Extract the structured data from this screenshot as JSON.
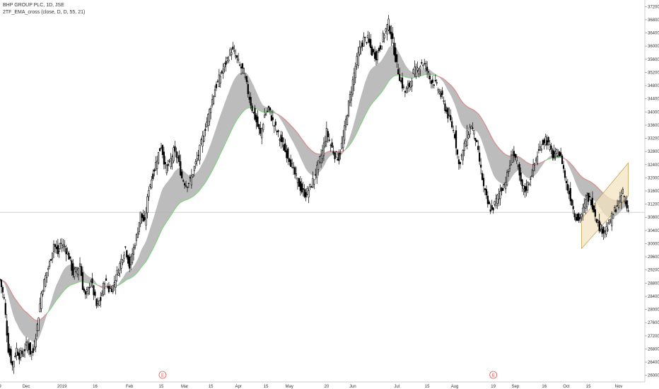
{
  "header": {
    "symbol_line": "BHP GROUP PLC, 1D, JSE",
    "indicator_line": "2TF_EMA_cross (close, D, D, 55, 21)"
  },
  "colors": {
    "up": "#000000",
    "down": "#000000",
    "cloud_fill": "#b0b0b0",
    "ema_fast_above": "#7fd37f",
    "ema_fast_below": "#d98a8a",
    "channel_fill": "#f3e4c0",
    "channel_edge": "#c9a35a",
    "earnings": "#e05a5a"
  },
  "chart_data": {
    "type": "candlestick",
    "yaxis": {
      "position": "right",
      "range": [
        25800,
        37400
      ],
      "ticks": [
        26000,
        26400,
        26800,
        27200,
        27600,
        28000,
        28400,
        28800,
        29200,
        29600,
        30000,
        30400,
        30800,
        31200,
        31600,
        32000,
        32400,
        32800,
        33200,
        33600,
        34000,
        34400,
        34800,
        35200,
        35600,
        36000,
        36400,
        36800,
        37200
      ]
    },
    "xaxis": {
      "labels": [
        "9",
        "Dec",
        "2019",
        "16",
        "Feb",
        "15",
        "Mar",
        "15",
        "Apr",
        "15",
        "May",
        "20",
        "Jun",
        "Jul",
        "15",
        "Aug",
        "19",
        "Sep",
        "16",
        "Oct",
        "15",
        "Nov"
      ],
      "label_days": [
        0,
        19,
        45,
        69,
        94,
        117,
        134,
        153,
        173,
        193,
        210,
        237,
        256,
        288,
        310,
        330,
        358,
        374,
        395,
        411,
        427,
        449
      ]
    },
    "horizontal_line": 30950,
    "earnings_markers": [
      {
        "label": "E",
        "day": 118
      },
      {
        "label": "E",
        "day": 358
      }
    ],
    "channel": {
      "start_day": 422,
      "end_day": 456,
      "lower_start": 29850,
      "lower_end": 31450,
      "upper_start": 30750,
      "upper_end": 32450
    },
    "keypoints": [
      [
        0,
        28900
      ],
      [
        3,
        28300
      ],
      [
        6,
        26800
      ],
      [
        9,
        26300
      ],
      [
        12,
        26800
      ],
      [
        14,
        26600
      ],
      [
        17,
        26700
      ],
      [
        20,
        27000
      ],
      [
        22,
        26700
      ],
      [
        24,
        26700
      ],
      [
        27,
        27500
      ],
      [
        30,
        28500
      ],
      [
        33,
        29000
      ],
      [
        36,
        29400
      ],
      [
        39,
        30000
      ],
      [
        42,
        29700
      ],
      [
        44,
        30000
      ],
      [
        47,
        29900
      ],
      [
        50,
        29600
      ],
      [
        53,
        29100
      ],
      [
        56,
        29200
      ],
      [
        58,
        29400
      ],
      [
        60,
        28700
      ],
      [
        62,
        28400
      ],
      [
        64,
        28600
      ],
      [
        66,
        28900
      ],
      [
        68,
        28500
      ],
      [
        70,
        28100
      ],
      [
        73,
        28300
      ],
      [
        76,
        28900
      ],
      [
        79,
        28600
      ],
      [
        82,
        28700
      ],
      [
        85,
        29100
      ],
      [
        88,
        29500
      ],
      [
        91,
        29900
      ],
      [
        94,
        29300
      ],
      [
        96,
        29700
      ],
      [
        99,
        30200
      ],
      [
        102,
        30900
      ],
      [
        105,
        30600
      ],
      [
        108,
        31700
      ],
      [
        111,
        32100
      ],
      [
        114,
        32600
      ],
      [
        117,
        33000
      ],
      [
        120,
        32300
      ],
      [
        123,
        32400
      ],
      [
        126,
        32800
      ],
      [
        129,
        32600
      ],
      [
        132,
        32000
      ],
      [
        135,
        31800
      ],
      [
        138,
        31900
      ],
      [
        141,
        32300
      ],
      [
        144,
        32700
      ],
      [
        147,
        33200
      ],
      [
        150,
        33700
      ],
      [
        153,
        34200
      ],
      [
        156,
        34700
      ],
      [
        159,
        35000
      ],
      [
        162,
        35300
      ],
      [
        165,
        35600
      ],
      [
        168,
        35900
      ],
      [
        171,
        35700
      ],
      [
        174,
        35400
      ],
      [
        177,
        35200
      ],
      [
        180,
        34600
      ],
      [
        183,
        34100
      ],
      [
        186,
        33700
      ],
      [
        189,
        33300
      ],
      [
        192,
        33900
      ],
      [
        195,
        34100
      ],
      [
        198,
        33700
      ],
      [
        201,
        33400
      ],
      [
        204,
        33100
      ],
      [
        207,
        32800
      ],
      [
        210,
        32600
      ],
      [
        213,
        32200
      ],
      [
        216,
        31900
      ],
      [
        219,
        31600
      ],
      [
        222,
        31500
      ],
      [
        225,
        31700
      ],
      [
        228,
        32000
      ],
      [
        231,
        32400
      ],
      [
        234,
        32800
      ],
      [
        237,
        33400
      ],
      [
        240,
        33000
      ],
      [
        243,
        32700
      ],
      [
        246,
        32600
      ],
      [
        249,
        33200
      ],
      [
        252,
        34000
      ],
      [
        255,
        34700
      ],
      [
        258,
        35400
      ],
      [
        261,
        35900
      ],
      [
        264,
        36200
      ],
      [
        267,
        36200
      ],
      [
        270,
        35800
      ],
      [
        273,
        35700
      ],
      [
        276,
        36000
      ],
      [
        279,
        36400
      ],
      [
        282,
        36700
      ],
      [
        285,
        36100
      ],
      [
        288,
        35400
      ],
      [
        291,
        34900
      ],
      [
        294,
        34600
      ],
      [
        297,
        34800
      ],
      [
        300,
        35200
      ],
      [
        303,
        35300
      ],
      [
        306,
        35500
      ],
      [
        309,
        35400
      ],
      [
        312,
        35000
      ],
      [
        315,
        34900
      ],
      [
        318,
        34700
      ],
      [
        321,
        34400
      ],
      [
        324,
        34000
      ],
      [
        327,
        33700
      ],
      [
        330,
        33300
      ],
      [
        333,
        32400
      ],
      [
        336,
        32800
      ],
      [
        339,
        33300
      ],
      [
        342,
        33600
      ],
      [
        345,
        33200
      ],
      [
        348,
        32500
      ],
      [
        351,
        31700
      ],
      [
        354,
        31200
      ],
      [
        357,
        31000
      ],
      [
        360,
        31300
      ],
      [
        363,
        31600
      ],
      [
        366,
        31800
      ],
      [
        369,
        32200
      ],
      [
        372,
        32800
      ],
      [
        375,
        32500
      ],
      [
        378,
        31800
      ],
      [
        381,
        31600
      ],
      [
        384,
        31900
      ],
      [
        387,
        32300
      ],
      [
        390,
        32700
      ],
      [
        393,
        33000
      ],
      [
        396,
        33200
      ],
      [
        399,
        32900
      ],
      [
        402,
        32600
      ],
      [
        405,
        32800
      ],
      [
        408,
        32500
      ],
      [
        411,
        31800
      ],
      [
        414,
        31400
      ],
      [
        417,
        30900
      ],
      [
        420,
        30700
      ],
      [
        423,
        31000
      ],
      [
        426,
        31400
      ],
      [
        429,
        31300
      ],
      [
        432,
        30900
      ],
      [
        435,
        30500
      ],
      [
        438,
        30400
      ],
      [
        441,
        30500
      ],
      [
        444,
        30800
      ],
      [
        447,
        31100
      ],
      [
        450,
        31300
      ],
      [
        452,
        31600
      ],
      [
        454,
        31200
      ],
      [
        456,
        31000
      ]
    ]
  }
}
